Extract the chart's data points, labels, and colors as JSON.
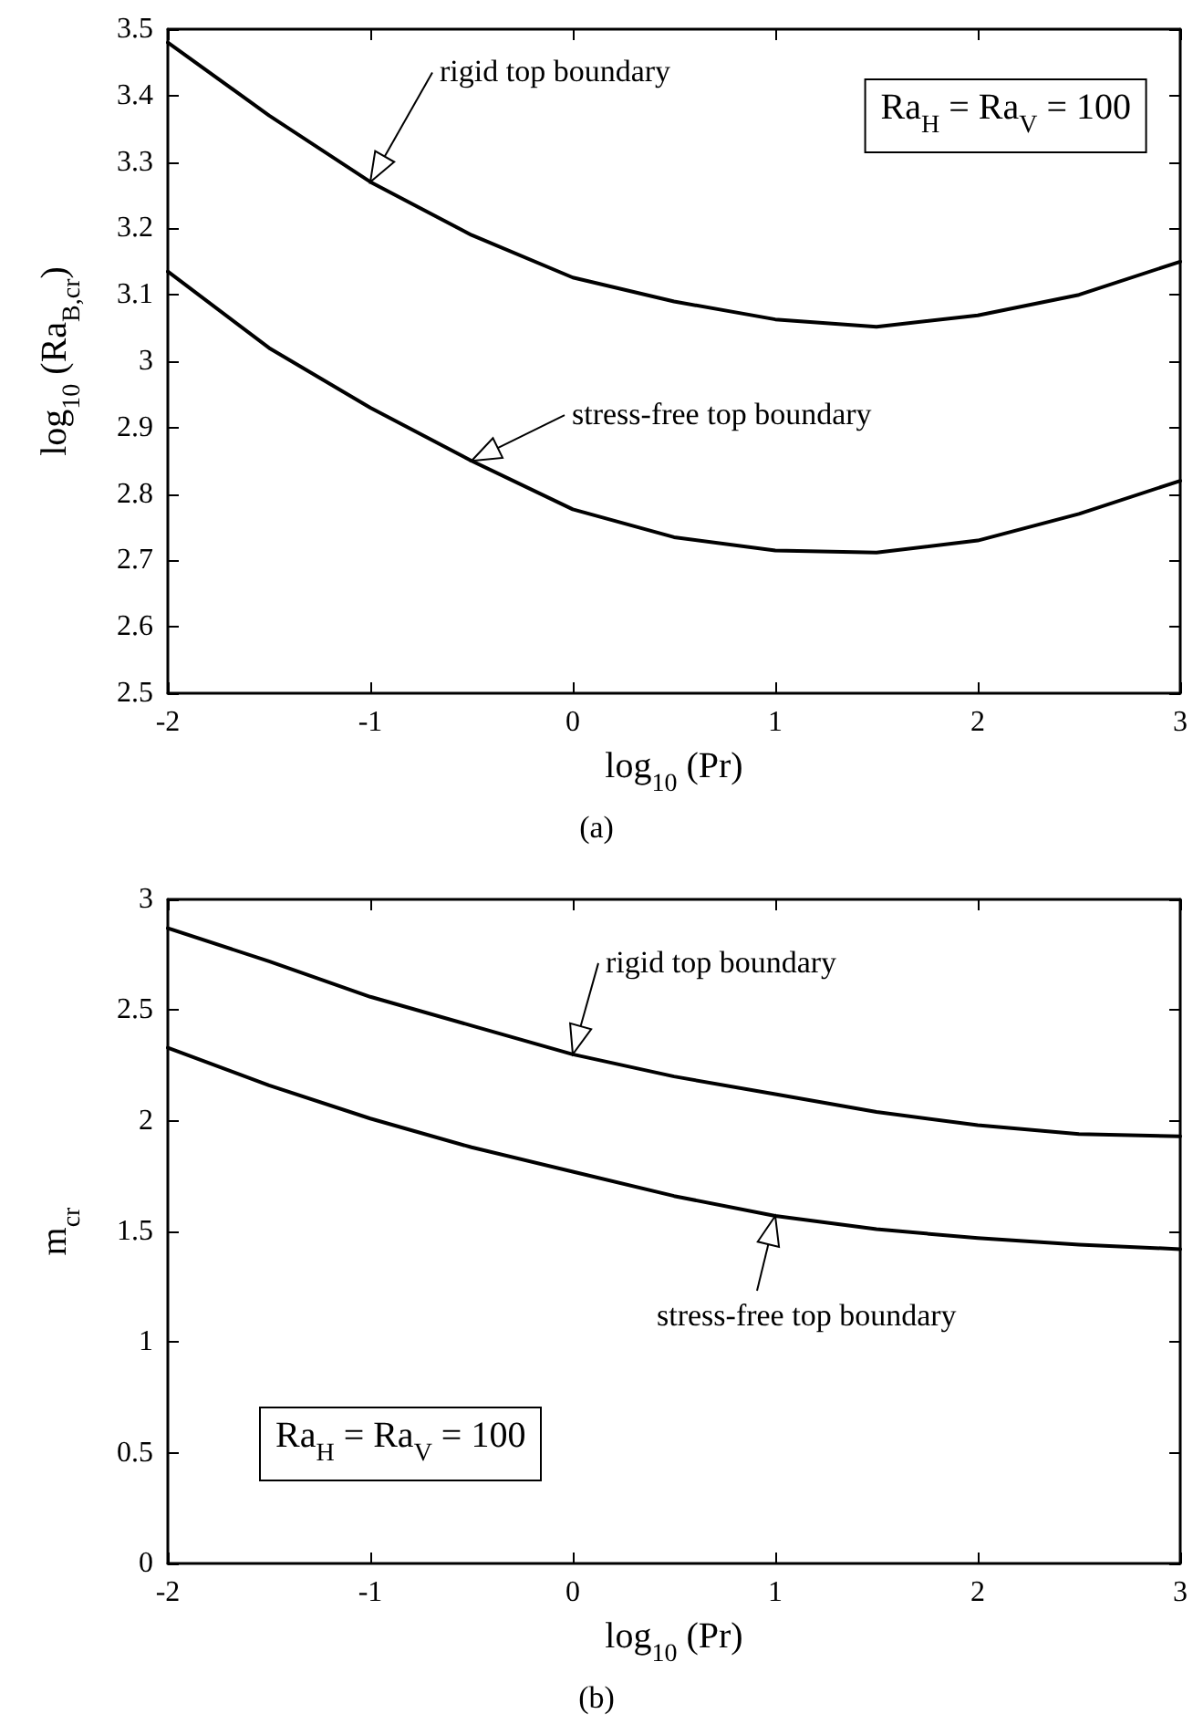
{
  "chart_data": [
    {
      "type": "line",
      "xlabel": "log$_{10}$ (Pr)",
      "ylabel": "log$_{10}$ (Ra$_{B,cr}$)",
      "annotations": [
        "Ra$_{H}$ = Ra$_{V}$ = 100",
        "(a)"
      ],
      "x": [
        -2,
        -1.5,
        -1,
        -0.5,
        0,
        0.5,
        1,
        1.5,
        2,
        2.5,
        3
      ],
      "series": [
        {
          "name": "rigid top boundary",
          "color": "#000000",
          "values": [
            3.48,
            3.37,
            3.27,
            3.19,
            3.126,
            3.09,
            3.063,
            3.052,
            3.069,
            3.1,
            3.15
          ]
        },
        {
          "name": "stress-free top boundary",
          "color": "#000000",
          "values": [
            3.135,
            3.02,
            2.93,
            2.85,
            2.777,
            2.735,
            2.715,
            2.712,
            2.73,
            2.77,
            2.82
          ]
        }
      ],
      "xlim": [
        -2,
        3
      ],
      "xticks": [
        -2,
        -1,
        0,
        1,
        2,
        3
      ],
      "ylim": [
        2.5,
        3.5
      ],
      "yticks": [
        2.5,
        2.6,
        2.7,
        2.8,
        2.9,
        3,
        3.1,
        3.2,
        3.3,
        3.4,
        3.5
      ],
      "grid": false,
      "legend": "bottom right",
      "marker": "none",
      "line_style": "solid"
    },
    {
      "type": "line",
      "xlabel": "log$_{10}$ (Pr)",
      "ylabel": "m$_{cr}$",
      "annotations": [
        "Ra$_{H}$ = Ra$_{V}$ = 100",
        "(b)"
      ],
      "x": [
        -2,
        -1.5,
        -1,
        -0.5,
        0,
        0.5,
        1,
        1.5,
        2,
        2.5,
        3
      ],
      "series": [
        {
          "name": "rigid top boundary",
          "color": "#000000",
          "values": [
            2.87,
            2.72,
            2.56,
            2.43,
            2.3,
            2.2,
            2.12,
            2.04,
            1.98,
            1.94,
            1.93
          ]
        },
        {
          "name": "stress-free top boundary",
          "color": "#000000",
          "values": [
            2.33,
            2.16,
            2.01,
            1.88,
            1.77,
            1.66,
            1.57,
            1.51,
            1.47,
            1.44,
            1.42
          ]
        }
      ],
      "xlim": [
        -2,
        3
      ],
      "xticks": [
        -2,
        -1,
        0,
        1,
        2,
        3
      ],
      "ylim": [
        0,
        3
      ],
      "yticks": [
        0,
        0.5,
        1,
        1.5,
        2,
        2.5,
        3
      ],
      "grid": false,
      "legend": "top right",
      "marker": "none",
      "line_style": "solid"
    }
  ]
}
